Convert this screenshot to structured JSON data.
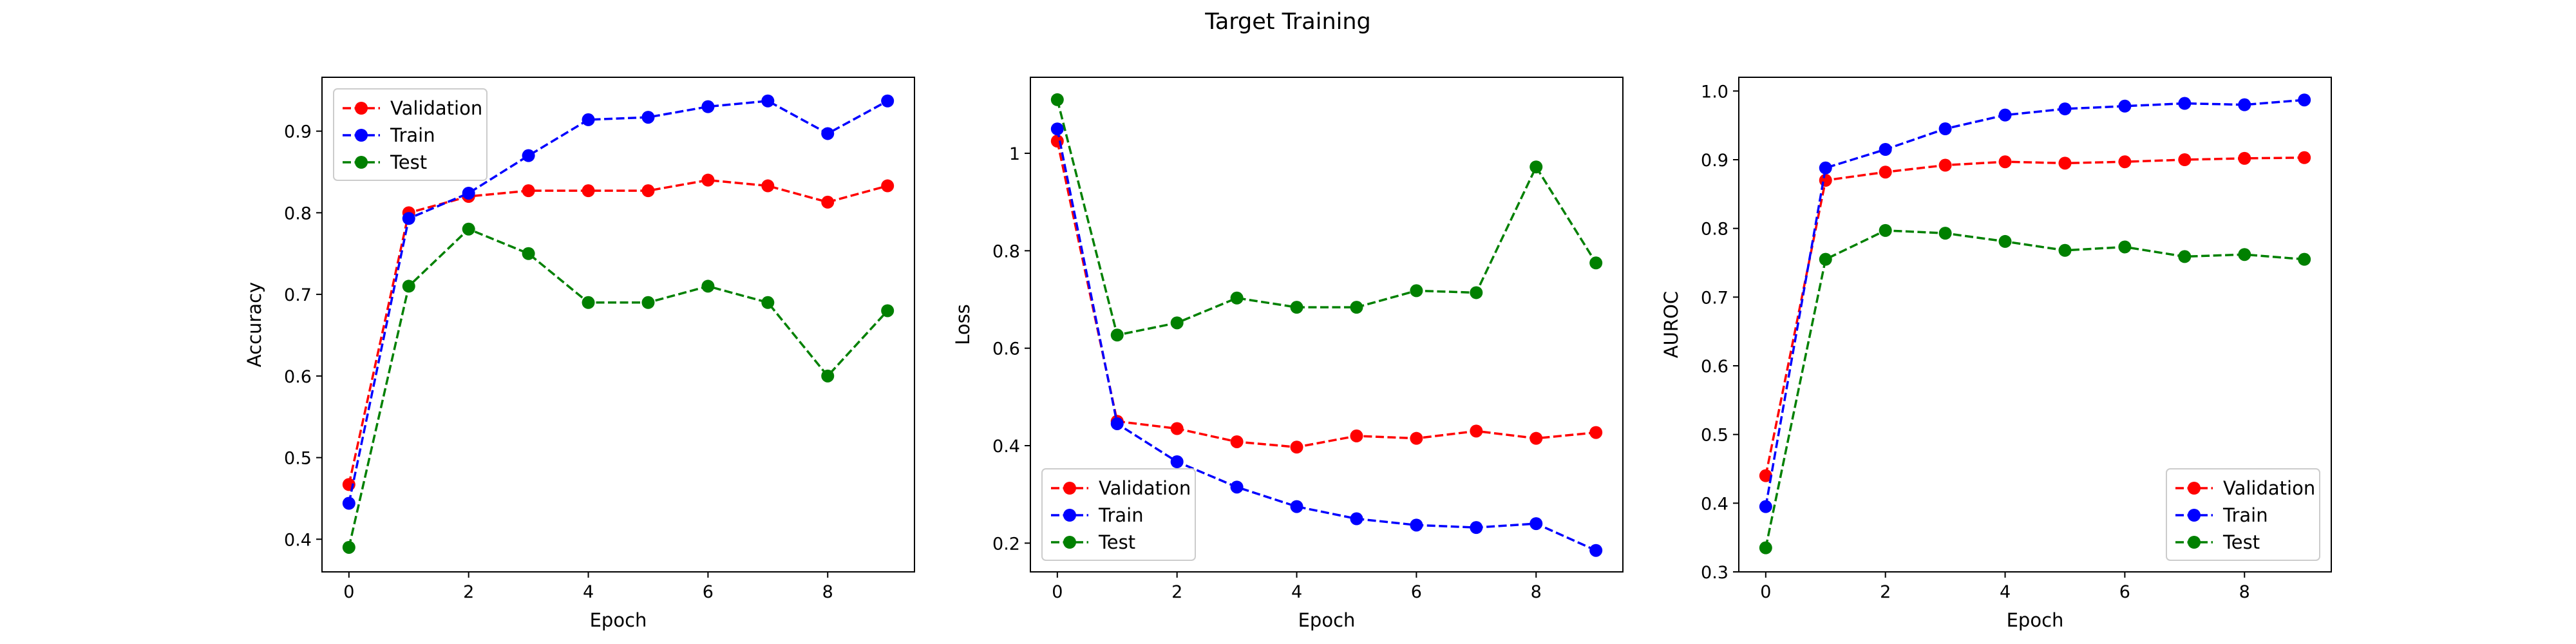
{
  "figure": {
    "title": "Target Training"
  },
  "chart_data": [
    {
      "type": "line",
      "title": "",
      "xlabel": "Epoch",
      "ylabel": "Accuracy",
      "x": [
        0,
        1,
        2,
        3,
        4,
        5,
        6,
        7,
        8,
        9
      ],
      "xticks": [
        0,
        2,
        4,
        6,
        8
      ],
      "yticks": [
        0.4,
        0.5,
        0.6,
        0.7,
        0.8,
        0.9
      ],
      "xlim": [
        -0.45,
        9.45
      ],
      "ylim": [
        0.36,
        0.966
      ],
      "grid": false,
      "legend": "upper-left",
      "line_style": "dashed",
      "marker": "circle",
      "series": [
        {
          "name": "Validation",
          "color": "#ff0000",
          "values": [
            0.467,
            0.8,
            0.82,
            0.827,
            0.827,
            0.827,
            0.84,
            0.833,
            0.813,
            0.833
          ]
        },
        {
          "name": "Train",
          "color": "#0000ff",
          "values": [
            0.444,
            0.793,
            0.824,
            0.87,
            0.914,
            0.917,
            0.93,
            0.937,
            0.897,
            0.937
          ]
        },
        {
          "name": "Test",
          "color": "#008000",
          "values": [
            0.39,
            0.71,
            0.78,
            0.75,
            0.69,
            0.69,
            0.71,
            0.69,
            0.6,
            0.68
          ]
        }
      ]
    },
    {
      "type": "line",
      "title": "",
      "xlabel": "Epoch",
      "ylabel": "Loss",
      "x": [
        0,
        1,
        2,
        3,
        4,
        5,
        6,
        7,
        8,
        9
      ],
      "xticks": [
        0,
        2,
        4,
        6,
        8
      ],
      "yticks": [
        0.2,
        0.4,
        0.6,
        0.8,
        1.0
      ],
      "xlim": [
        -0.45,
        9.45
      ],
      "ylim": [
        0.141,
        1.156
      ],
      "grid": false,
      "legend": "lower-left",
      "line_style": "dashed",
      "marker": "circle",
      "series": [
        {
          "name": "Validation",
          "color": "#ff0000",
          "values": [
            1.025,
            0.45,
            0.435,
            0.408,
            0.397,
            0.42,
            0.415,
            0.43,
            0.415,
            0.427
          ]
        },
        {
          "name": "Train",
          "color": "#0000ff",
          "values": [
            1.05,
            0.445,
            0.367,
            0.315,
            0.275,
            0.25,
            0.237,
            0.232,
            0.24,
            0.185
          ]
        },
        {
          "name": "Test",
          "color": "#008000",
          "values": [
            1.11,
            0.627,
            0.652,
            0.703,
            0.684,
            0.684,
            0.718,
            0.714,
            0.972,
            0.775
          ]
        }
      ]
    },
    {
      "type": "line",
      "title": "",
      "xlabel": "Epoch",
      "ylabel": "AUROC",
      "x": [
        0,
        1,
        2,
        3,
        4,
        5,
        6,
        7,
        8,
        9
      ],
      "xticks": [
        0,
        2,
        4,
        6,
        8
      ],
      "yticks": [
        0.3,
        0.4,
        0.5,
        0.6,
        0.7,
        0.8,
        0.9,
        1.0
      ],
      "ytick_labels": [
        "0.3",
        "0.4",
        "0.5",
        "0.6",
        "0.7",
        "0.8",
        "0.9",
        "1.0"
      ],
      "xlim": [
        -0.45,
        9.45
      ],
      "ylim": [
        0.3,
        1.02
      ],
      "grid": false,
      "legend": "lower-right",
      "line_style": "dashed",
      "marker": "circle",
      "series": [
        {
          "name": "Validation",
          "color": "#ff0000",
          "values": [
            0.44,
            0.87,
            0.882,
            0.892,
            0.897,
            0.895,
            0.897,
            0.9,
            0.902,
            0.903
          ]
        },
        {
          "name": "Train",
          "color": "#0000ff",
          "values": [
            0.395,
            0.888,
            0.915,
            0.945,
            0.965,
            0.974,
            0.978,
            0.982,
            0.98,
            0.987
          ]
        },
        {
          "name": "Test",
          "color": "#008000",
          "values": [
            0.335,
            0.755,
            0.797,
            0.793,
            0.781,
            0.768,
            0.773,
            0.759,
            0.762,
            0.755
          ]
        }
      ]
    }
  ]
}
